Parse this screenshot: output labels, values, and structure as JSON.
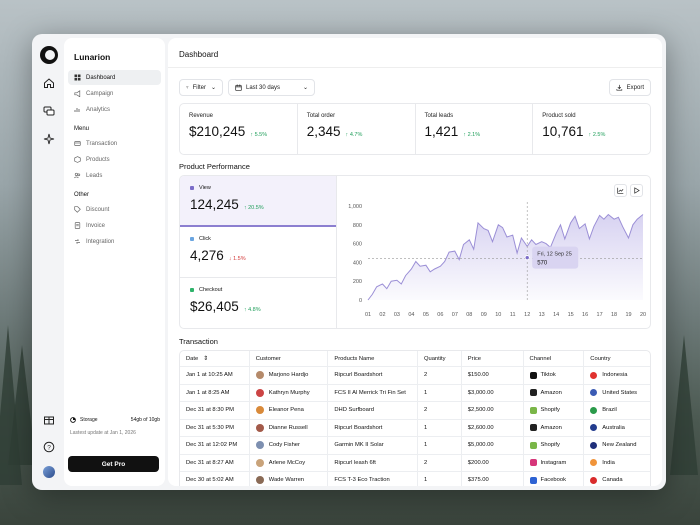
{
  "app": {
    "name": "Lunarion"
  },
  "sidebar": {
    "main_items": [
      {
        "label": "Dashboard",
        "icon": "dashboard-icon"
      },
      {
        "label": "Campaign",
        "icon": "campaign-icon"
      },
      {
        "label": "Analytics",
        "icon": "analytics-icon"
      }
    ],
    "menu_title": "Menu",
    "menu_items": [
      {
        "label": "Transaction",
        "icon": "transaction-icon"
      },
      {
        "label": "Products",
        "icon": "products-icon"
      },
      {
        "label": "Leads",
        "icon": "leads-icon"
      }
    ],
    "other_title": "Other",
    "other_items": [
      {
        "label": "Discount",
        "icon": "discount-icon"
      },
      {
        "label": "Invoice",
        "icon": "invoice-icon"
      },
      {
        "label": "Integration",
        "icon": "integration-icon"
      }
    ],
    "storage_label": "Storage",
    "storage_value": "54gb of 10gb",
    "last_update": "Lastest update at Jan 1, 2026",
    "get_pro": "Get Pro"
  },
  "header": {
    "title": "Dashboard"
  },
  "toolbar": {
    "filter": "Filter",
    "range": "Last 30 days",
    "export": "Export"
  },
  "stats": [
    {
      "label": "Revenue",
      "value": "$210,245",
      "change": "5.5%",
      "direction": "up"
    },
    {
      "label": "Total order",
      "value": "2,345",
      "change": "4.7%",
      "direction": "up"
    },
    {
      "label": "Total leads",
      "value": "1,421",
      "change": "2.1%",
      "direction": "up"
    },
    {
      "label": "Product sold",
      "value": "10,761",
      "change": "2.5%",
      "direction": "up"
    }
  ],
  "performance": {
    "title": "Product Performance",
    "metrics": [
      {
        "label": "View",
        "value": "124,245",
        "change": "20.5%",
        "direction": "up",
        "color": "#7b6cc8"
      },
      {
        "label": "Click",
        "value": "4,276",
        "change": "1.5%",
        "direction": "down",
        "color": "#6aa5e0"
      },
      {
        "label": "Checkout",
        "value": "$26,405",
        "change": "4.8%",
        "direction": "up",
        "color": "#2fb36b"
      }
    ],
    "tooltip": {
      "date": "Fri, 12 Sep 25",
      "value": "570"
    }
  },
  "chart_data": {
    "type": "area",
    "categories": [
      "01",
      "02",
      "03",
      "04",
      "05",
      "06",
      "07",
      "08",
      "09",
      "10",
      "11",
      "12",
      "13",
      "14",
      "15",
      "16",
      "17",
      "18",
      "19",
      "20"
    ],
    "yticks": [
      "0",
      "200",
      "400",
      "600",
      "800",
      "1,000"
    ],
    "ylim": [
      0,
      1000
    ],
    "reference_line": 440,
    "highlight_index": 11,
    "series": [
      {
        "color": "#9b8fd6",
        "x": [
          1,
          1.3,
          1.6,
          2,
          2.3,
          2.6,
          3,
          3.3,
          3.6,
          4,
          4.3,
          4.6,
          5,
          5.3,
          5.6,
          6,
          6.3,
          6.6,
          7,
          7.3,
          7.6,
          8,
          8.3,
          8.6,
          9,
          9.3,
          9.6,
          10,
          10.3,
          10.6,
          11,
          11.3,
          11.6,
          12,
          12.3,
          12.6,
          13,
          13.3,
          13.6,
          14,
          14.3,
          14.6,
          15,
          15.3,
          15.6,
          16,
          16.3,
          16.6,
          17,
          17.3,
          17.6,
          18,
          18.3,
          18.6,
          19,
          19.3,
          19.6,
          20
        ],
        "y": [
          0,
          60,
          140,
          170,
          120,
          200,
          210,
          170,
          260,
          330,
          410,
          360,
          370,
          300,
          330,
          360,
          410,
          510,
          520,
          430,
          590,
          640,
          540,
          820,
          760,
          740,
          620,
          800,
          770,
          670,
          690,
          500,
          660,
          570,
          640,
          590,
          620,
          600,
          560,
          710,
          800,
          650,
          820,
          890,
          760,
          810,
          650,
          780,
          900,
          860,
          910,
          860,
          880,
          780,
          660,
          800,
          860,
          910
        ]
      }
    ]
  },
  "transactions": {
    "title": "Transaction",
    "columns": [
      "Date",
      "Customer",
      "Products Name",
      "Quantity",
      "Price",
      "Channel",
      "Country"
    ],
    "rows": [
      {
        "date": "Jan 1 at 10:25 AM",
        "customer": "Marjono Hardjo",
        "product": "Ripcurl Boardshort",
        "qty": "2",
        "price": "$150.00",
        "channel": "Tiktok",
        "country": "Indonesia",
        "av": "#b58a6a",
        "ch": "#111",
        "fl": "#e0322f"
      },
      {
        "date": "Jan 1 at 8:25 AM",
        "customer": "Kathryn Murphy",
        "product": "FCS II Al Merrick Tri Fin Set",
        "qty": "1",
        "price": "$3,000.00",
        "channel": "Amazon",
        "country": "United States",
        "av": "#c44",
        "ch": "#222",
        "fl": "#3b5bb4"
      },
      {
        "date": "Dec 31 at 8:30 PM",
        "customer": "Eleanor Pena",
        "product": "DHD Surfboard",
        "qty": "2",
        "price": "$2,500.00",
        "channel": "Shopify",
        "country": "Brazil",
        "av": "#d98a3a",
        "ch": "#7ab648",
        "fl": "#2a9a4a"
      },
      {
        "date": "Dec 31 at 5:30 PM",
        "customer": "Dianne Russell",
        "product": "Ripcurl Boardshort",
        "qty": "1",
        "price": "$2,600.00",
        "channel": "Amazon",
        "country": "Australia",
        "av": "#a35a4a",
        "ch": "#222",
        "fl": "#233c8e"
      },
      {
        "date": "Dec 31 at 12:02 PM",
        "customer": "Cody Fisher",
        "product": "Garmin MK II Solar",
        "qty": "1",
        "price": "$5,000.00",
        "channel": "Shopify",
        "country": "New Zealand",
        "av": "#7d8fb0",
        "ch": "#7ab648",
        "fl": "#1f2f7a"
      },
      {
        "date": "Dec 31 at 8:27 AM",
        "customer": "Arlene McCoy",
        "product": "Ripcurl leash 6ft",
        "qty": "2",
        "price": "$200.00",
        "channel": "Instagram",
        "country": "India",
        "av": "#c9a37a",
        "ch": "#d6367a",
        "fl": "#f0943a"
      },
      {
        "date": "Dec 30 at 5:02 AM",
        "customer": "Wade Warren",
        "product": "FCS T-3 Eco Traction",
        "qty": "1",
        "price": "$375.00",
        "channel": "Facebook",
        "country": "Canada",
        "av": "#8a6a55",
        "ch": "#2d62d3",
        "fl": "#d92b2b"
      }
    ]
  }
}
